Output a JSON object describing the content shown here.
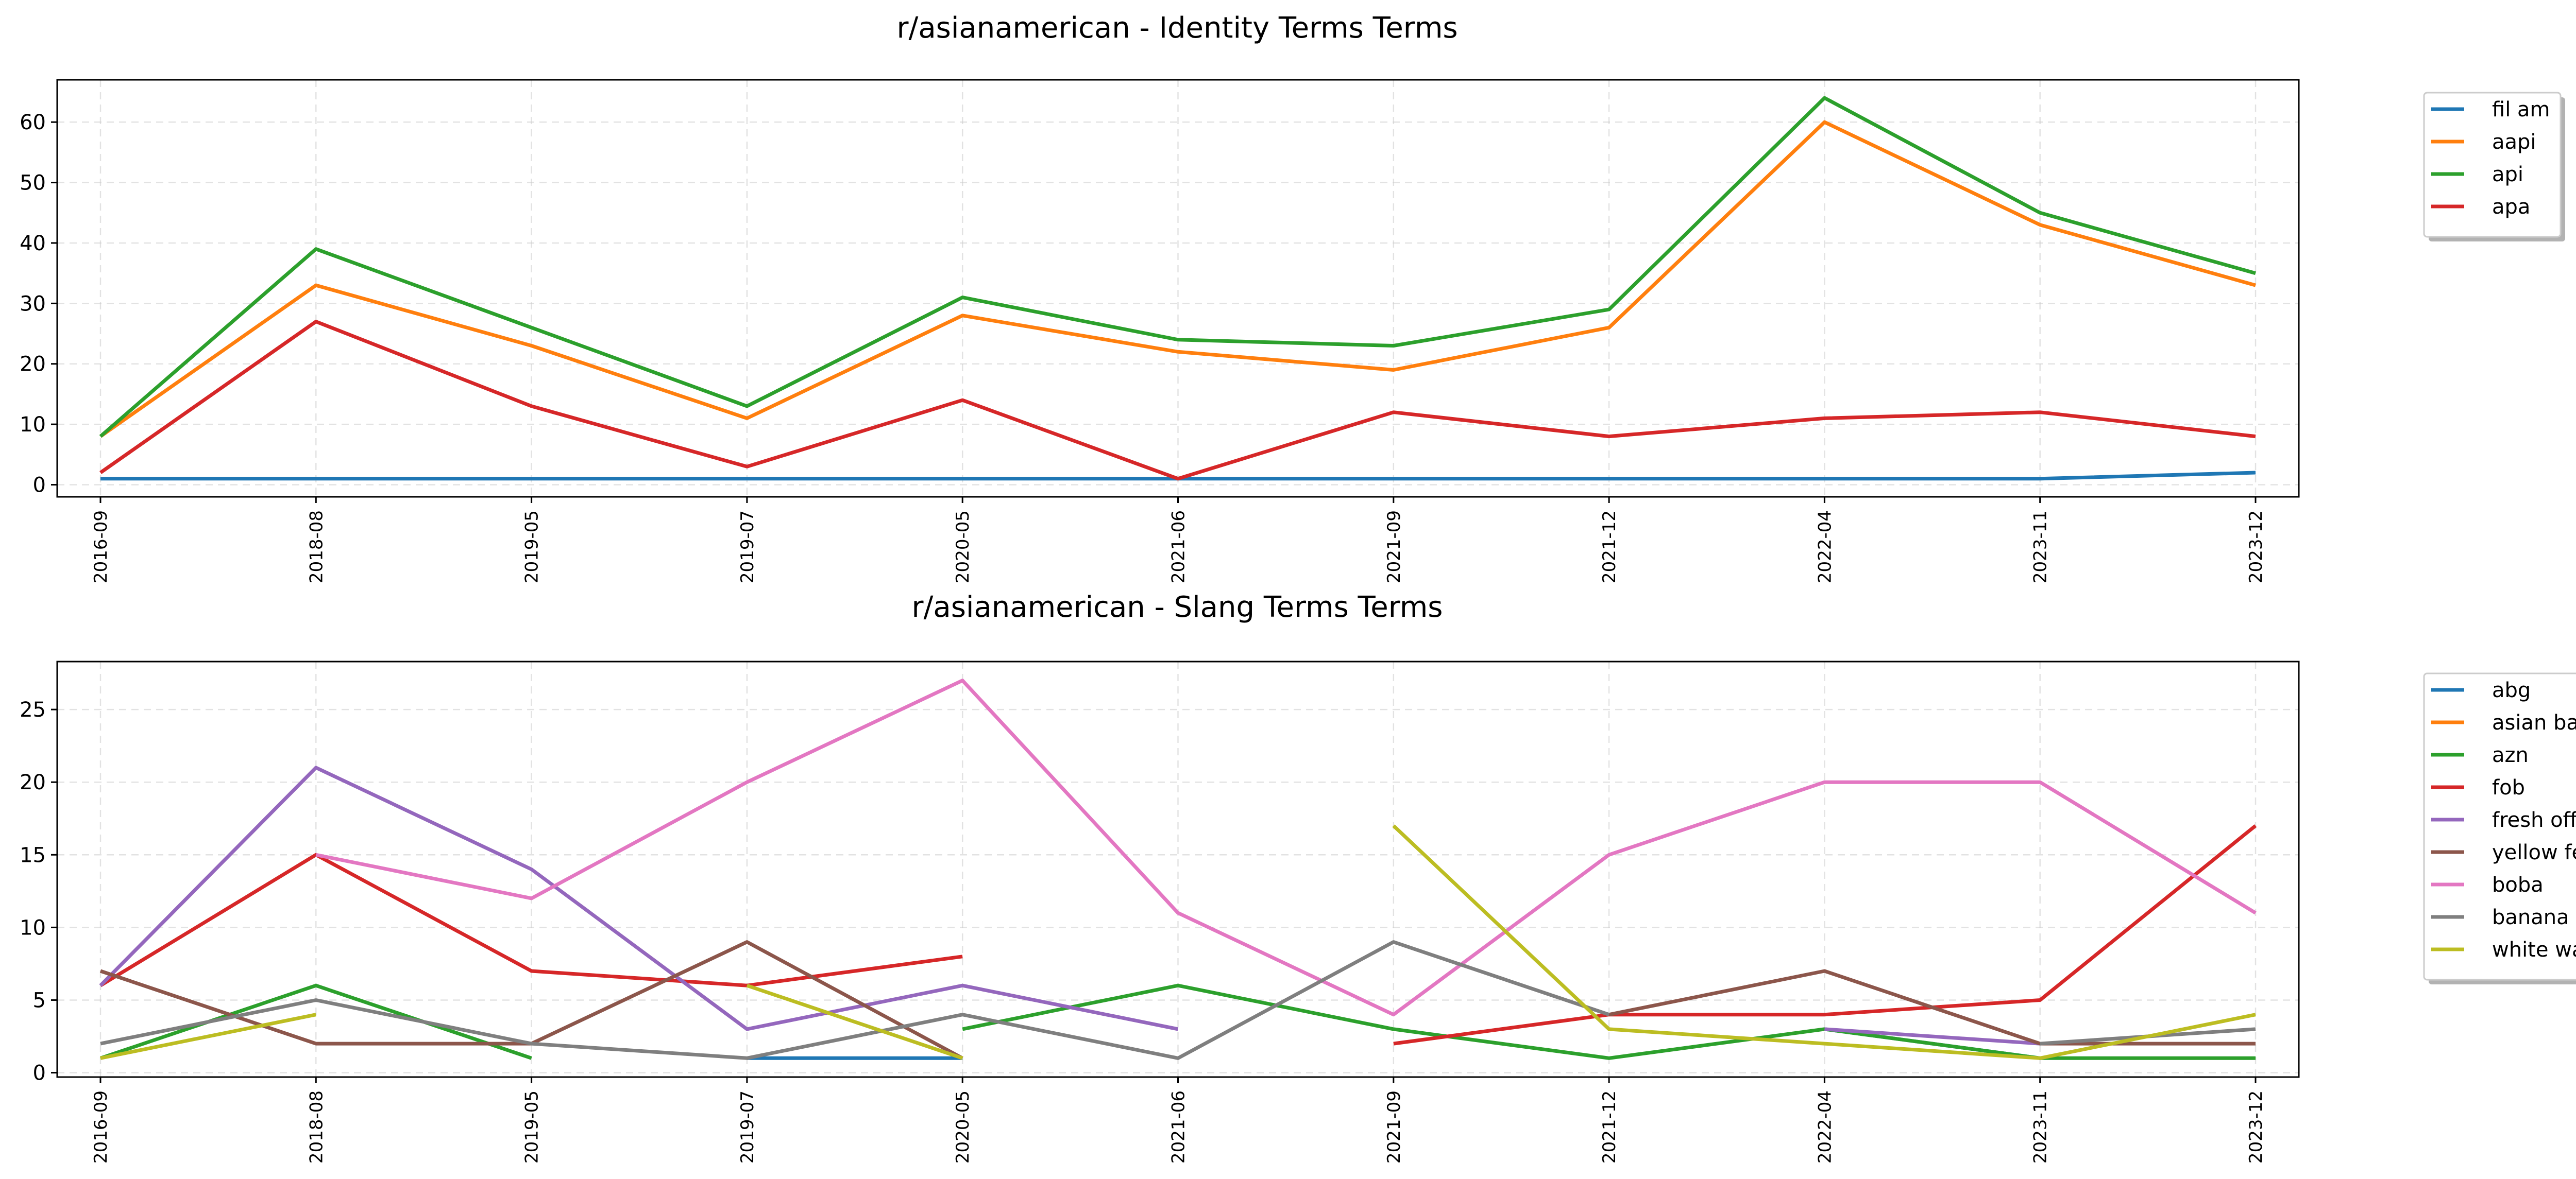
{
  "chart_data": [
    {
      "type": "line",
      "title": "r/asianamerican - Identity Terms Terms",
      "xlabel": "",
      "ylabel": "",
      "ylim": [
        -2,
        67
      ],
      "yticks": [
        0,
        10,
        20,
        30,
        40,
        50,
        60
      ],
      "grid": true,
      "legend_position": "outside-top-right",
      "categories": [
        "2016-09",
        "2018-08",
        "2019-05",
        "2019-07",
        "2020-05",
        "2021-06",
        "2021-09",
        "2021-12",
        "2022-04",
        "2023-11",
        "2023-12"
      ],
      "series": [
        {
          "name": "fil am",
          "color": "#1f77b4",
          "values": [
            1,
            1,
            1,
            1,
            1,
            1,
            1,
            1,
            1,
            1,
            2
          ]
        },
        {
          "name": "aapi",
          "color": "#ff7f0e",
          "values": [
            8,
            33,
            23,
            11,
            28,
            22,
            19,
            26,
            60,
            43,
            33
          ]
        },
        {
          "name": "api",
          "color": "#2ca02c",
          "values": [
            8,
            39,
            26,
            13,
            31,
            24,
            23,
            29,
            64,
            45,
            35
          ]
        },
        {
          "name": "apa",
          "color": "#d62728",
          "values": [
            2,
            27,
            13,
            3,
            14,
            1,
            12,
            8,
            11,
            12,
            8
          ]
        }
      ]
    },
    {
      "type": "line",
      "title": "r/asianamerican - Slang Terms Terms",
      "xlabel": "",
      "ylabel": "",
      "ylim": [
        -0.3,
        28.3
      ],
      "yticks": [
        0,
        5,
        10,
        15,
        20,
        25
      ],
      "grid": true,
      "legend_position": "outside-top-right",
      "categories": [
        "2016-09",
        "2018-08",
        "2019-05",
        "2019-07",
        "2020-05",
        "2021-06",
        "2021-09",
        "2021-12",
        "2022-04",
        "2023-11",
        "2023-12"
      ],
      "series": [
        {
          "name": "abg",
          "color": "#1f77b4",
          "values": [
            null,
            null,
            null,
            1,
            1,
            null,
            null,
            null,
            3,
            1,
            null
          ]
        },
        {
          "name": "asian baby girl",
          "color": "#ff7f0e",
          "values": [
            null,
            null,
            null,
            null,
            null,
            null,
            null,
            null,
            null,
            null,
            null
          ]
        },
        {
          "name": "azn",
          "color": "#2ca02c",
          "values": [
            1,
            6,
            1,
            null,
            3,
            6,
            3,
            1,
            3,
            1,
            1
          ]
        },
        {
          "name": "fob",
          "color": "#d62728",
          "values": [
            6,
            15,
            7,
            6,
            8,
            null,
            2,
            4,
            4,
            5,
            17
          ]
        },
        {
          "name": "fresh off the boat",
          "color": "#9467bd",
          "values": [
            6,
            21,
            14,
            3,
            6,
            3,
            null,
            null,
            3,
            2,
            null
          ]
        },
        {
          "name": "yellow fever",
          "color": "#8c564b",
          "values": [
            7,
            2,
            2,
            9,
            1,
            null,
            null,
            4,
            7,
            2,
            2
          ]
        },
        {
          "name": "boba",
          "color": "#e377c2",
          "values": [
            null,
            15,
            12,
            20,
            27,
            11,
            4,
            15,
            20,
            20,
            11
          ]
        },
        {
          "name": "banana",
          "color": "#7f7f7f",
          "values": [
            2,
            5,
            2,
            1,
            4,
            1,
            9,
            4,
            null,
            2,
            3
          ]
        },
        {
          "name": "white washed",
          "color": "#bcbd22",
          "values": [
            1,
            4,
            null,
            6,
            1,
            null,
            17,
            3,
            2,
            1,
            4
          ]
        }
      ]
    }
  ]
}
